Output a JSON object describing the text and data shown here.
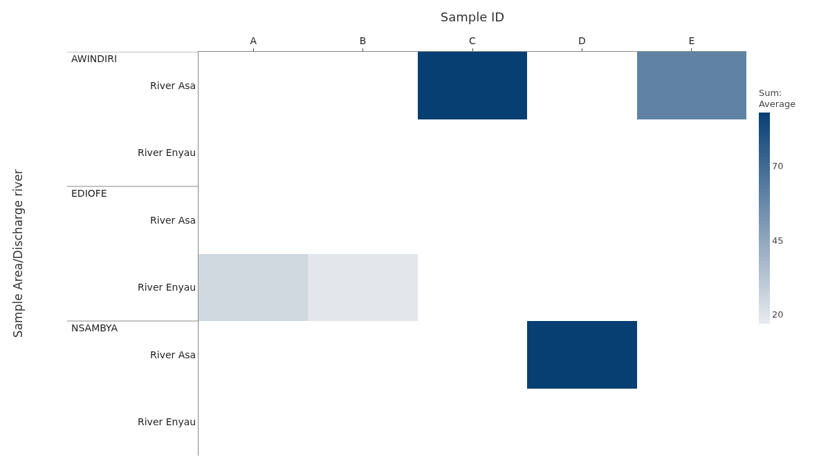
{
  "chart_data": {
    "type": "heatmap",
    "xlabel": "Sample ID",
    "annotations": [
      "Sample Area/Discharge river"
    ],
    "clabel": "Sum:\nAverage",
    "categories": [
      "A",
      "B",
      "C",
      "D",
      "E"
    ],
    "y_categories": [
      "River Asa",
      "River Enyau",
      "River Asa",
      "River Enyau",
      "River Asa",
      "River Enyau"
    ],
    "y2_categories": [
      "AWINDIRI",
      null,
      "EDIOFE",
      null,
      "NSAMBYA",
      null
    ],
    "cells": [
      [
        null,
        null,
        88,
        null,
        60
      ],
      [
        null,
        null,
        null,
        null,
        null
      ],
      [
        null,
        null,
        null,
        null,
        null
      ],
      [
        25,
        19,
        null,
        null,
        null
      ],
      [
        null,
        null,
        null,
        88,
        null
      ],
      [
        null,
        null,
        null,
        null,
        null
      ]
    ],
    "clim": [
      17,
      88
    ],
    "cticks": [
      20,
      45,
      70
    ],
    "colors": [
      "#e9ebee",
      "#073f73"
    ]
  }
}
